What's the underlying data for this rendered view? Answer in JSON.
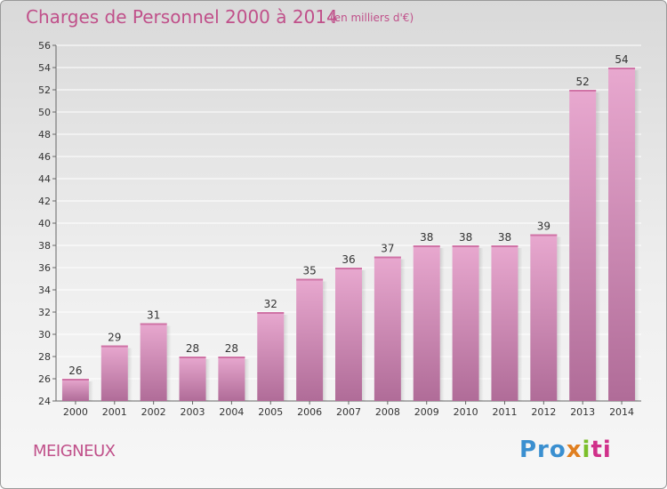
{
  "header": {
    "title": "Charges de Personnel 2000 à 2014",
    "subtitle": "(en milliers d'€)"
  },
  "footer": {
    "commune": "MEIGNEUX",
    "logo_parts": [
      "Pro",
      "x",
      "i",
      "ti"
    ]
  },
  "colors": {
    "title": "#c0508a",
    "bar_top": "#e8a8cf",
    "bar_bottom": "#b06c98",
    "grid": "#ffffff"
  },
  "chart_data": {
    "type": "bar",
    "title": "Charges de Personnel 2000 à 2014",
    "subtitle": "(en milliers d'€)",
    "categories": [
      "2000",
      "2001",
      "2002",
      "2003",
      "2004",
      "2005",
      "2006",
      "2007",
      "2008",
      "2009",
      "2010",
      "2011",
      "2012",
      "2013",
      "2014"
    ],
    "values": [
      26,
      29,
      31,
      28,
      28,
      32,
      35,
      36,
      37,
      38,
      38,
      38,
      39,
      52,
      54
    ],
    "ylim": [
      24,
      56
    ],
    "yticks": [
      24,
      26,
      28,
      30,
      32,
      34,
      36,
      38,
      40,
      42,
      44,
      46,
      48,
      50,
      52,
      54,
      56
    ],
    "grid": true,
    "data_labels": true
  }
}
